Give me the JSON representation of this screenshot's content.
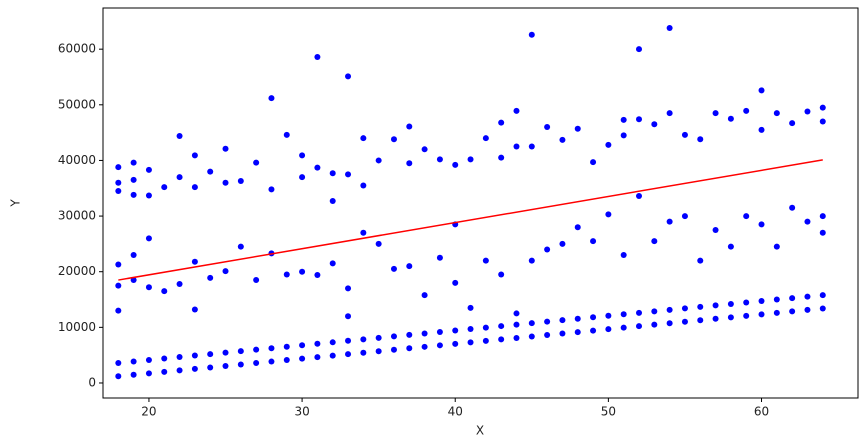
{
  "chart_data": {
    "type": "scatter",
    "xlabel": "X",
    "ylabel": "Y",
    "xlim": [
      17.0,
      66.3
    ],
    "ylim": [
      -2700,
      67400
    ],
    "xticks": [
      20,
      30,
      40,
      50,
      60
    ],
    "yticks": [
      0,
      10000,
      20000,
      30000,
      40000,
      50000,
      60000
    ],
    "points": {
      "color": "blue",
      "x": [
        18,
        19,
        20,
        21,
        22,
        23,
        24,
        25,
        26,
        27,
        28,
        29,
        30,
        31,
        32,
        33,
        34,
        35,
        36,
        37,
        38,
        39,
        40,
        41,
        42,
        43,
        44,
        45,
        46,
        47,
        48,
        49,
        50,
        51,
        52,
        53,
        54,
        55,
        56,
        57,
        58,
        59,
        60,
        61,
        62,
        63,
        64,
        18,
        19,
        20,
        21,
        22,
        23,
        24,
        25,
        26,
        27,
        28,
        29,
        30,
        31,
        32,
        33,
        34,
        35,
        36,
        37,
        38,
        39,
        40,
        41,
        42,
        43,
        44,
        45,
        46,
        47,
        48,
        49,
        50,
        51,
        52,
        53,
        54,
        55,
        56,
        57,
        58,
        59,
        60,
        61,
        62,
        63,
        64,
        18,
        18,
        18,
        19,
        19,
        20,
        20,
        21,
        22,
        23,
        23,
        24,
        25,
        26,
        27,
        28,
        29,
        30,
        31,
        32,
        33,
        33,
        34,
        35,
        36,
        37,
        38,
        39,
        40,
        40,
        41,
        42,
        43,
        44,
        45,
        46,
        47,
        48,
        49,
        50,
        51,
        52,
        53,
        54,
        55,
        56,
        57,
        58,
        59,
        60,
        61,
        62,
        63,
        64,
        64,
        18,
        18,
        18,
        19,
        19,
        19,
        20,
        20,
        21,
        22,
        22,
        23,
        23,
        24,
        25,
        25,
        26,
        27,
        28,
        28,
        29,
        30,
        30,
        31,
        31,
        32,
        32,
        33,
        33,
        34,
        34,
        35,
        36,
        37,
        37,
        38,
        39,
        40,
        41,
        42,
        43,
        43,
        44,
        44,
        45,
        45,
        46,
        47,
        48,
        49,
        50,
        51,
        51,
        52,
        52,
        53,
        54,
        54,
        55,
        56,
        57,
        58,
        59,
        60,
        60,
        61,
        62,
        63,
        64,
        64
      ],
      "y": [
        1200,
        1470,
        1730,
        2000,
        2260,
        2530,
        2790,
        3060,
        3320,
        3590,
        3850,
        4120,
        4380,
        4650,
        4910,
        5180,
        5440,
        5710,
        5970,
        6240,
        6500,
        6770,
        7030,
        7300,
        7560,
        7830,
        8090,
        8360,
        8620,
        8890,
        9150,
        9420,
        9680,
        9950,
        10210,
        10480,
        10740,
        11010,
        11270,
        11540,
        11800,
        12070,
        12330,
        12600,
        12860,
        13130,
        13390,
        3600,
        3870,
        4130,
        4400,
        4660,
        4930,
        5190,
        5460,
        5720,
        5990,
        6250,
        6520,
        6780,
        7050,
        7310,
        7580,
        7840,
        8110,
        8370,
        8640,
        8900,
        9170,
        9430,
        9700,
        9960,
        10230,
        10490,
        10760,
        11020,
        11290,
        11550,
        11820,
        12080,
        12350,
        12610,
        12880,
        13140,
        13410,
        13670,
        13940,
        14200,
        14470,
        14730,
        15000,
        15260,
        15530,
        15790,
        17500,
        13000,
        21300,
        18500,
        23000,
        17200,
        26000,
        16500,
        17800,
        21800,
        13200,
        18900,
        20100,
        24500,
        18500,
        23300,
        19500,
        20000,
        19400,
        21500,
        17000,
        12000,
        27000,
        25000,
        20500,
        21000,
        15800,
        22500,
        28500,
        18000,
        13500,
        22000,
        19500,
        12500,
        22000,
        24000,
        25000,
        28000,
        25500,
        30300,
        23000,
        33600,
        25500,
        29000,
        30000,
        22000,
        27500,
        24500,
        30000,
        28500,
        24500,
        31500,
        29000,
        30000,
        27000,
        38800,
        34500,
        36000,
        39600,
        33800,
        36500,
        38300,
        33700,
        35200,
        44400,
        37000,
        40900,
        35200,
        38000,
        42100,
        36000,
        36300,
        39600,
        51200,
        34800,
        44600,
        40900,
        37000,
        58600,
        38700,
        37700,
        32700,
        55100,
        37500,
        44000,
        35500,
        40000,
        43800,
        46100,
        39500,
        42000,
        40200,
        39200,
        40200,
        44000,
        46800,
        40500,
        48900,
        42500,
        62600,
        42500,
        46000,
        43700,
        45700,
        39700,
        42800,
        47300,
        44500,
        60000,
        47400,
        46500,
        63800,
        48500,
        44600,
        43800,
        48500,
        47500,
        48900,
        52600,
        45500,
        48500,
        46700,
        48800,
        49500,
        47000
      ]
    },
    "fit_line": {
      "color": "red",
      "x": [
        18,
        64
      ],
      "y": [
        18500,
        40100
      ]
    }
  }
}
